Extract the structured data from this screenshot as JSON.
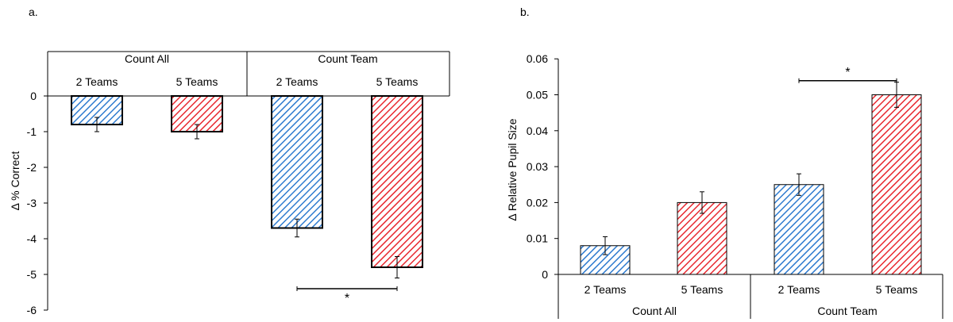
{
  "panels": [
    {
      "panel_label": "a.",
      "chart_data": {
        "type": "bar",
        "title": "",
        "xlabel": "",
        "ylabel": "Δ % Correct",
        "ylim": [
          -6,
          0
        ],
        "y_ticks": [
          0,
          -1,
          -2,
          -3,
          -4,
          -5,
          -6
        ],
        "category_axis_position": "top",
        "groups": [
          "Count All",
          "Count Team"
        ],
        "categories": [
          "2 Teams",
          "5 Teams",
          "2 Teams",
          "5 Teams"
        ],
        "values": [
          -0.8,
          -1.0,
          -3.7,
          -4.8
        ],
        "errors": [
          0.2,
          0.2,
          0.25,
          0.3
        ],
        "bar_colors": [
          "#2e7bcf",
          "#e8282f",
          "#2e7bcf",
          "#e8282f"
        ],
        "bar_pattern": "diagonal-hatch",
        "grid": false,
        "legend": "none",
        "significance": {
          "label": "*",
          "between": [
            2,
            3
          ],
          "y": -5.4
        }
      }
    },
    {
      "panel_label": "b.",
      "chart_data": {
        "type": "bar",
        "title": "",
        "xlabel": "",
        "ylabel": "Δ Relative Pupil Size",
        "ylim": [
          0,
          0.06
        ],
        "y_ticks": [
          "0",
          "0.01",
          "0.02",
          "0.03",
          "0.04",
          "0.05",
          "0.06"
        ],
        "category_axis_position": "bottom",
        "groups": [
          "Count All",
          "Count Team"
        ],
        "categories": [
          "2 Teams",
          "5 Teams",
          "2 Teams",
          "5 Teams"
        ],
        "values": [
          0.008,
          0.02,
          0.025,
          0.05
        ],
        "errors": [
          0.0025,
          0.003,
          0.003,
          0.0035
        ],
        "bar_colors": [
          "#2e7bcf",
          "#e8282f",
          "#2e7bcf",
          "#e8282f"
        ],
        "bar_pattern": "diagonal-hatch",
        "grid": false,
        "legend": "none",
        "significance": {
          "label": "*",
          "between": [
            2,
            3
          ],
          "y": 0.057
        }
      }
    }
  ]
}
